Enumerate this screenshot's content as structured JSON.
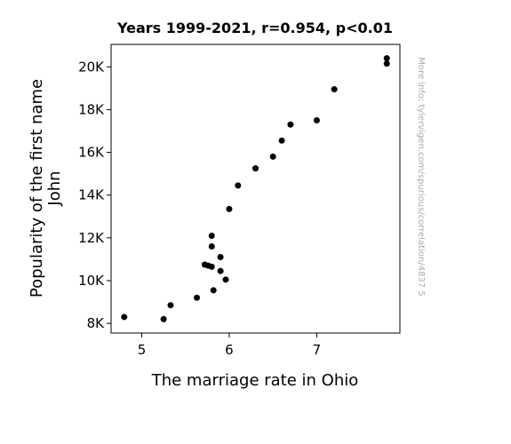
{
  "chart_data": {
    "type": "scatter",
    "title": "Years 1999-2021, r=0.954, p<0.01",
    "xlabel": "The marriage rate in Ohio",
    "ylabel_lines": [
      "Popularity of the first name",
      "John"
    ],
    "xlim": [
      4.65,
      7.95
    ],
    "ylim": [
      7550,
      21050
    ],
    "x_ticks": [
      {
        "value": 5,
        "label": "5"
      },
      {
        "value": 6,
        "label": "6"
      },
      {
        "value": 7,
        "label": "7"
      }
    ],
    "y_ticks": [
      {
        "value": 8000,
        "label": "8K"
      },
      {
        "value": 10000,
        "label": "10K"
      },
      {
        "value": 12000,
        "label": "12K"
      },
      {
        "value": 14000,
        "label": "14K"
      },
      {
        "value": 16000,
        "label": "16K"
      },
      {
        "value": 18000,
        "label": "18K"
      },
      {
        "value": 20000,
        "label": "20K"
      }
    ],
    "grid": false,
    "legend": "none",
    "marker_color": "#000000",
    "points": [
      {
        "x": 7.8,
        "y": 20400
      },
      {
        "x": 7.8,
        "y": 20150
      },
      {
        "x": 7.2,
        "y": 18950
      },
      {
        "x": 7.0,
        "y": 17500
      },
      {
        "x": 6.7,
        "y": 17300
      },
      {
        "x": 6.6,
        "y": 16550
      },
      {
        "x": 6.5,
        "y": 15800
      },
      {
        "x": 6.3,
        "y": 15250
      },
      {
        "x": 6.1,
        "y": 14450
      },
      {
        "x": 6.0,
        "y": 13350
      },
      {
        "x": 5.8,
        "y": 12100
      },
      {
        "x": 5.8,
        "y": 11600
      },
      {
        "x": 5.9,
        "y": 11100
      },
      {
        "x": 5.72,
        "y": 10750
      },
      {
        "x": 5.76,
        "y": 10700
      },
      {
        "x": 5.8,
        "y": 10650
      },
      {
        "x": 5.9,
        "y": 10450
      },
      {
        "x": 5.96,
        "y": 10050
      },
      {
        "x": 5.82,
        "y": 9550
      },
      {
        "x": 5.63,
        "y": 9200
      },
      {
        "x": 5.33,
        "y": 8850
      },
      {
        "x": 5.25,
        "y": 8200
      },
      {
        "x": 4.8,
        "y": 8300
      }
    ]
  },
  "watermark": "More info: tylervigen.com/spurious/correlation/4837 5"
}
